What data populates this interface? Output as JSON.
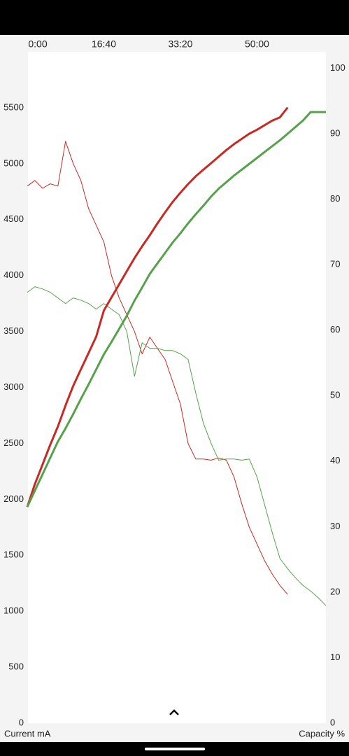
{
  "chart_data": {
    "type": "line",
    "x": [
      0,
      100,
      200,
      300,
      400,
      500,
      600,
      700,
      800,
      900,
      1000,
      1100,
      1200,
      1300,
      1400,
      1500,
      1600,
      1700,
      1800,
      1900,
      2000,
      2100,
      2200,
      2300,
      2400,
      2500,
      2600,
      2700,
      2800,
      2900,
      3000,
      3100,
      3200,
      3300,
      3400,
      3500,
      3600,
      3700,
      3800,
      3900
    ],
    "xlim": [
      0,
      3900
    ],
    "xticks": [
      {
        "value": 0,
        "label": "0:00"
      },
      {
        "value": 1000,
        "label": "16:40"
      },
      {
        "value": 2000,
        "label": "33:20"
      },
      {
        "value": 3000,
        "label": "50:00"
      }
    ],
    "ylim": [
      0,
      6000
    ],
    "yticks": [
      0,
      500,
      1000,
      1500,
      2000,
      2500,
      3000,
      3500,
      4000,
      4500,
      5000,
      5500
    ],
    "y2lim": [
      0,
      102.5
    ],
    "y2ticks": [
      0,
      10,
      20,
      30,
      40,
      50,
      60,
      70,
      80,
      90,
      100
    ],
    "y_label": "Current mA",
    "y2_label": "Capacity %",
    "series": [
      {
        "color": "#c62a22",
        "width": 1,
        "values": [
          4800,
          4850,
          4780,
          4820,
          4800,
          5200,
          5000,
          4850,
          4600,
          4450,
          4300,
          4000,
          3800,
          3650,
          3500,
          3300,
          3450,
          3350,
          3250,
          3050,
          2850,
          2500,
          2360,
          2360,
          2350,
          2370,
          2350,
          2200,
          1960,
          1750,
          1600,
          1450,
          1330,
          1230,
          1150,
          null,
          null,
          null,
          null,
          null
        ]
      },
      {
        "color": "#56a14b",
        "width": 1,
        "values": [
          3850,
          3900,
          3880,
          3850,
          3800,
          3750,
          3800,
          3780,
          3750,
          3700,
          3750,
          3700,
          3650,
          3500,
          3100,
          3400,
          3350,
          3350,
          3330,
          3330,
          3300,
          3250,
          2950,
          2680,
          2500,
          2350,
          2360,
          2360,
          2350,
          2360,
          2200,
          1950,
          1700,
          1470,
          1380,
          1300,
          1230,
          1180,
          1120,
          1050
        ]
      },
      {
        "color": "#c62a22",
        "width": 3,
        "axis": "y2",
        "values": [
          33,
          36.5,
          39.5,
          42.5,
          45.3,
          48.5,
          51.5,
          54,
          56.5,
          59,
          63,
          65,
          67,
          69,
          71,
          72.8,
          74.5,
          76.3,
          78,
          79.6,
          81,
          82.3,
          83.5,
          84.5,
          85.5,
          86.5,
          87.5,
          88.4,
          89.2,
          90,
          90.6,
          91.3,
          92,
          92.5,
          94,
          null,
          null,
          null,
          null,
          null
        ]
      },
      {
        "color": "#56a14b",
        "width": 3,
        "axis": "y2",
        "values": [
          33,
          35.5,
          38,
          40.5,
          43,
          45,
          47.2,
          49.5,
          51.7,
          54,
          56.3,
          58.2,
          60.2,
          62.2,
          64.5,
          66.5,
          68.6,
          70.2,
          71.8,
          73.4,
          74.8,
          76.3,
          77.7,
          79,
          80.4,
          81.6,
          82.6,
          83.6,
          84.5,
          85.4,
          86.3,
          87.2,
          88.1,
          89,
          90,
          91,
          92,
          93.3,
          93.3,
          93.3
        ]
      }
    ]
  }
}
